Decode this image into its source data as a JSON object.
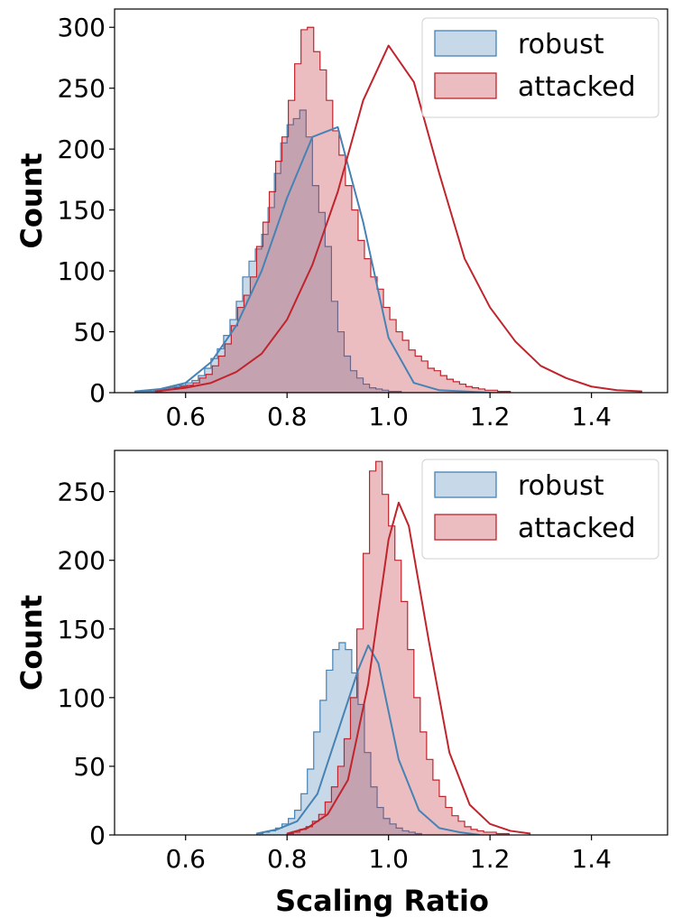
{
  "chart_data": [
    {
      "type": "histogram",
      "xlabel": "",
      "ylabel": "Count",
      "xlim": [
        0.46,
        1.55
      ],
      "ylim": [
        0,
        315
      ],
      "xticks": [
        0.6,
        0.8,
        1.0,
        1.2,
        1.4
      ],
      "xtick_labels": [
        "0.6",
        "0.8",
        "1.0",
        "1.2",
        "1.4"
      ],
      "yticks": [
        0,
        50,
        100,
        150,
        200,
        250,
        300
      ],
      "ytick_labels": [
        "0",
        "50",
        "100",
        "150",
        "200",
        "250",
        "300"
      ],
      "bin_width": 0.0125,
      "legend": {
        "placement": "top-right"
      },
      "series": [
        {
          "name": "robust",
          "color": "#4682b4",
          "fill": "#c8d8e8",
          "bin_start": 0.5,
          "counts": [
            1,
            1,
            1,
            2,
            3,
            4,
            5,
            6,
            8,
            10,
            14,
            20,
            28,
            36,
            47,
            60,
            75,
            95,
            108,
            118,
            130,
            152,
            180,
            205,
            220,
            225,
            232,
            210,
            170,
            148,
            120,
            75,
            50,
            30,
            18,
            12,
            7,
            4,
            3,
            2,
            1,
            1
          ],
          "kde_x": [
            0.5,
            0.55,
            0.6,
            0.65,
            0.7,
            0.75,
            0.8,
            0.85,
            0.9,
            0.95,
            1.0,
            1.05,
            1.1,
            1.15,
            1.2
          ],
          "kde_y": [
            1,
            3,
            8,
            25,
            55,
            100,
            160,
            210,
            218,
            140,
            45,
            8,
            2,
            1,
            0
          ]
        },
        {
          "name": "attacked",
          "color": "#c0242d",
          "fill": "#e9b8bb",
          "bin_start": 0.54,
          "counts": [
            1,
            2,
            3,
            4,
            5,
            6,
            8,
            12,
            15,
            22,
            30,
            40,
            55,
            70,
            80,
            95,
            120,
            140,
            165,
            190,
            210,
            240,
            270,
            298,
            300,
            280,
            265,
            240,
            215,
            195,
            170,
            150,
            125,
            110,
            95,
            85,
            70,
            60,
            50,
            43,
            35,
            30,
            26,
            20,
            18,
            14,
            11,
            9,
            7,
            5,
            4,
            3,
            2,
            2,
            1,
            1
          ],
          "kde_x": [
            0.54,
            0.6,
            0.65,
            0.7,
            0.75,
            0.8,
            0.85,
            0.9,
            0.95,
            1.0,
            1.05,
            1.1,
            1.15,
            1.2,
            1.25,
            1.3,
            1.35,
            1.4,
            1.45,
            1.5
          ],
          "kde_y": [
            1,
            4,
            8,
            17,
            32,
            60,
            105,
            165,
            240,
            285,
            255,
            180,
            110,
            70,
            42,
            22,
            12,
            5,
            2,
            1
          ]
        }
      ]
    },
    {
      "type": "histogram",
      "xlabel": "Scaling Ratio",
      "ylabel": "Count",
      "xlim": [
        0.46,
        1.55
      ],
      "ylim": [
        0,
        280
      ],
      "xticks": [
        0.6,
        0.8,
        1.0,
        1.2,
        1.4
      ],
      "xtick_labels": [
        "0.6",
        "0.8",
        "1.0",
        "1.2",
        "1.4"
      ],
      "yticks": [
        0,
        50,
        100,
        150,
        200,
        250
      ],
      "ytick_labels": [
        "0",
        "50",
        "100",
        "150",
        "200",
        "250"
      ],
      "bin_width": 0.0125,
      "legend": {
        "placement": "top-right"
      },
      "series": [
        {
          "name": "robust",
          "color": "#4682b4",
          "fill": "#c8d8e8",
          "bin_start": 0.74,
          "counts": [
            1,
            2,
            3,
            5,
            8,
            12,
            18,
            30,
            48,
            75,
            98,
            120,
            135,
            140,
            135,
            118,
            95,
            60,
            35,
            20,
            12,
            8,
            5,
            3,
            2,
            1
          ],
          "kde_x": [
            0.74,
            0.78,
            0.82,
            0.86,
            0.9,
            0.94,
            0.96,
            0.98,
            1.0,
            1.02,
            1.06,
            1.1,
            1.14,
            1.18
          ],
          "kde_y": [
            1,
            4,
            10,
            30,
            75,
            120,
            138,
            125,
            90,
            55,
            18,
            5,
            2,
            0
          ]
        },
        {
          "name": "attacked",
          "color": "#c0242d",
          "fill": "#e9b8bb",
          "bin_start": 0.8,
          "counts": [
            1,
            2,
            4,
            6,
            10,
            15,
            24,
            35,
            50,
            70,
            100,
            150,
            205,
            265,
            272,
            248,
            225,
            200,
            170,
            135,
            100,
            75,
            55,
            40,
            28,
            20,
            14,
            10,
            6,
            4,
            3,
            2,
            2,
            1,
            1
          ],
          "kde_x": [
            0.8,
            0.84,
            0.88,
            0.92,
            0.96,
            1.0,
            1.02,
            1.04,
            1.08,
            1.12,
            1.16,
            1.2,
            1.24,
            1.28
          ],
          "kde_y": [
            1,
            5,
            15,
            40,
            110,
            215,
            242,
            225,
            140,
            60,
            22,
            8,
            3,
            1
          ]
        }
      ]
    }
  ]
}
